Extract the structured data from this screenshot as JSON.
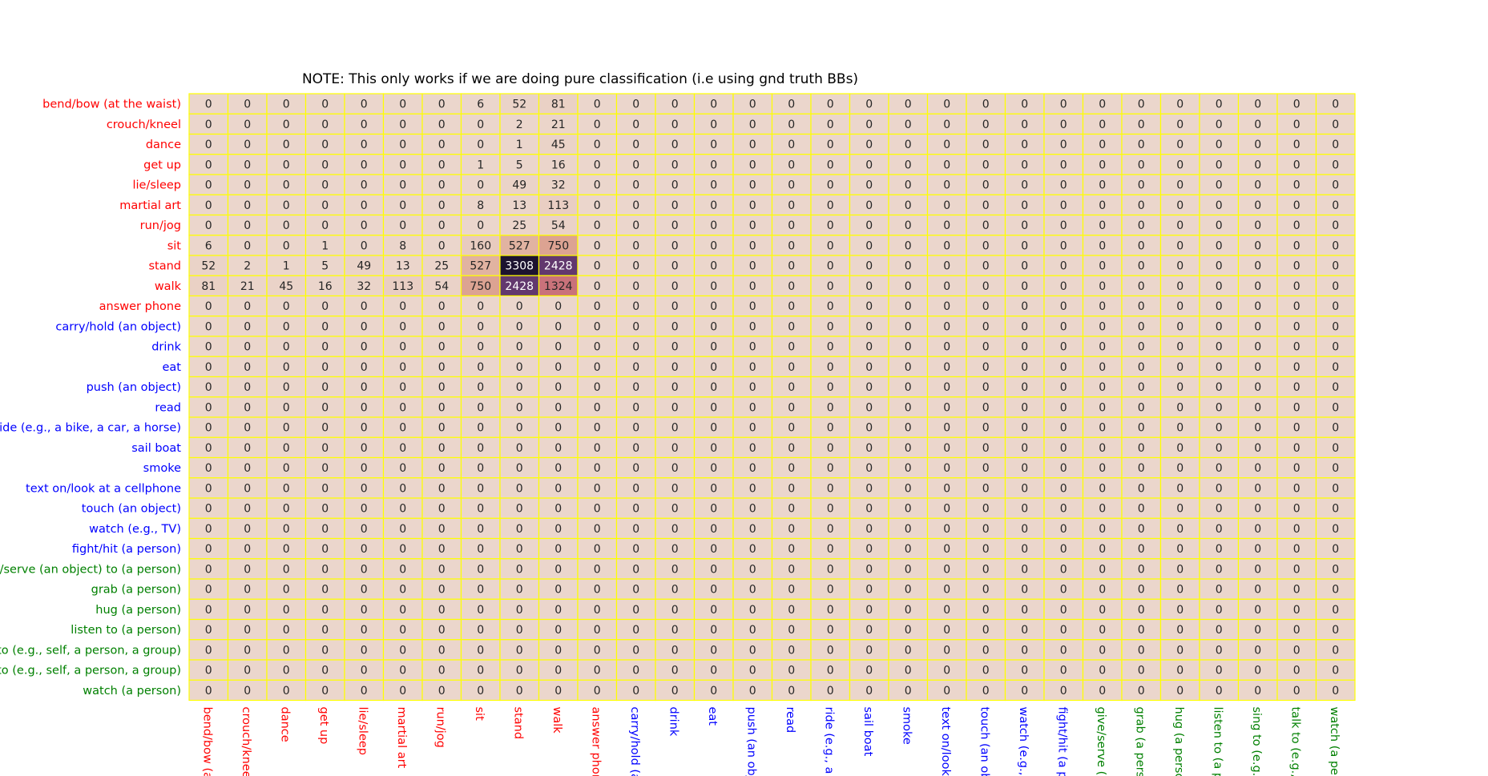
{
  "chart_data": {
    "type": "heatmap",
    "title": "NOTE: This only works if we are doing pure classification (i.e using gnd truth BBs)",
    "row_labels": [
      "bend/bow (at the waist)",
      "crouch/kneel",
      "dance",
      "get up",
      "lie/sleep",
      "martial art",
      "run/jog",
      "sit",
      "stand",
      "walk",
      "answer phone",
      "carry/hold (an object)",
      "drink",
      "eat",
      "push (an object)",
      "read",
      "ride (e.g., a bike, a car, a horse)",
      "sail boat",
      "smoke",
      "text on/look at a cellphone",
      "touch (an object)",
      "watch (e.g., TV)",
      "fight/hit (a person)",
      "e/serve (an object) to (a person)",
      "grab (a person)",
      "hug (a person)",
      "listen to (a person)",
      "to (e.g., self, a person, a group)",
      "to (e.g., self, a person, a group)",
      "watch (a person)"
    ],
    "col_labels": [
      "bend/bow (at",
      "crouch/kneel",
      "dance",
      "get up",
      "lie/sleep",
      "martial art",
      "run/jog",
      "sit",
      "stand",
      "walk",
      "answer phone",
      "carry/hold (an",
      "drink",
      "eat",
      "push (an obje",
      "read",
      "ride (e.g., a bi",
      "sail boat",
      "smoke",
      "text on/look a",
      "touch (an obje",
      "watch (e.g., T",
      "fight/hit (a pe",
      "give/serve (ar",
      "grab (a person",
      "hug (a person",
      "listen to (a pe",
      "sing to (e.g., s",
      "talk to (e.g., s",
      "watch (a pers"
    ],
    "row_label_colors": [
      "#ff0000",
      "#ff0000",
      "#ff0000",
      "#ff0000",
      "#ff0000",
      "#ff0000",
      "#ff0000",
      "#ff0000",
      "#ff0000",
      "#ff0000",
      "#ff0000",
      "#0000ff",
      "#0000ff",
      "#0000ff",
      "#0000ff",
      "#0000ff",
      "#0000ff",
      "#0000ff",
      "#0000ff",
      "#0000ff",
      "#0000ff",
      "#0000ff",
      "#0000ff",
      "#008000",
      "#008000",
      "#008000",
      "#008000",
      "#008000",
      "#008000",
      "#008000"
    ],
    "col_label_colors": [
      "#ff0000",
      "#ff0000",
      "#ff0000",
      "#ff0000",
      "#ff0000",
      "#ff0000",
      "#ff0000",
      "#ff0000",
      "#ff0000",
      "#ff0000",
      "#ff0000",
      "#0000ff",
      "#0000ff",
      "#0000ff",
      "#0000ff",
      "#0000ff",
      "#0000ff",
      "#0000ff",
      "#0000ff",
      "#0000ff",
      "#0000ff",
      "#0000ff",
      "#0000ff",
      "#008000",
      "#008000",
      "#008000",
      "#008000",
      "#008000",
      "#008000",
      "#008000"
    ],
    "nonzero_cells": [
      [
        0,
        7,
        6
      ],
      [
        0,
        8,
        52
      ],
      [
        0,
        9,
        81
      ],
      [
        1,
        8,
        2
      ],
      [
        1,
        9,
        21
      ],
      [
        2,
        8,
        1
      ],
      [
        2,
        9,
        45
      ],
      [
        3,
        7,
        1
      ],
      [
        3,
        8,
        5
      ],
      [
        3,
        9,
        16
      ],
      [
        4,
        8,
        49
      ],
      [
        4,
        9,
        32
      ],
      [
        5,
        7,
        8
      ],
      [
        5,
        8,
        13
      ],
      [
        5,
        9,
        113
      ],
      [
        6,
        8,
        25
      ],
      [
        6,
        9,
        54
      ],
      [
        7,
        0,
        6
      ],
      [
        7,
        3,
        1
      ],
      [
        7,
        5,
        8
      ],
      [
        7,
        7,
        160
      ],
      [
        7,
        8,
        527
      ],
      [
        7,
        9,
        750
      ],
      [
        8,
        0,
        52
      ],
      [
        8,
        1,
        2
      ],
      [
        8,
        2,
        1
      ],
      [
        8,
        3,
        5
      ],
      [
        8,
        4,
        49
      ],
      [
        8,
        5,
        13
      ],
      [
        8,
        6,
        25
      ],
      [
        8,
        7,
        527
      ],
      [
        8,
        8,
        3308
      ],
      [
        8,
        9,
        2428
      ],
      [
        9,
        0,
        81
      ],
      [
        9,
        1,
        21
      ],
      [
        9,
        2,
        45
      ],
      [
        9,
        3,
        16
      ],
      [
        9,
        4,
        32
      ],
      [
        9,
        5,
        113
      ],
      [
        9,
        6,
        54
      ],
      [
        9,
        7,
        750
      ],
      [
        9,
        8,
        2428
      ],
      [
        9,
        9,
        1324
      ]
    ],
    "default_value": 0,
    "value_range": [
      0,
      3308
    ],
    "colormap": [
      "#ebd6cc",
      "#dfaa96",
      "#c9727a",
      "#8c4b7c",
      "#4e2f67",
      "#1c1330"
    ],
    "cell_border_color": "#ffff00",
    "grid": true,
    "legend": "none"
  }
}
